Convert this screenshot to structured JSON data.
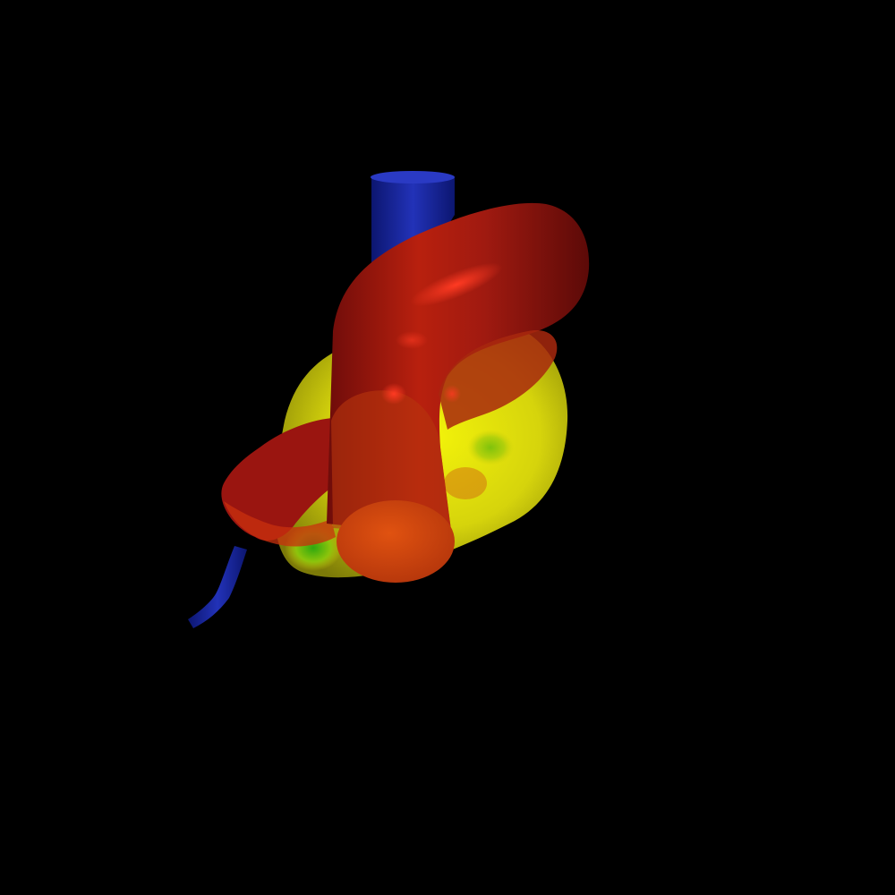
{
  "scene": {
    "background": "#000000",
    "objects": [
      {
        "name": "aorta-arch",
        "color": "#9e1a14",
        "highlight": "#ff2a1a"
      },
      {
        "name": "aorta-cut-face",
        "color": "#d84a10"
      },
      {
        "name": "heart-chamber",
        "color": "#d4d410",
        "accent": "#3aaa10"
      },
      {
        "name": "vein-vessel",
        "color": "#1c2aa8"
      }
    ]
  }
}
